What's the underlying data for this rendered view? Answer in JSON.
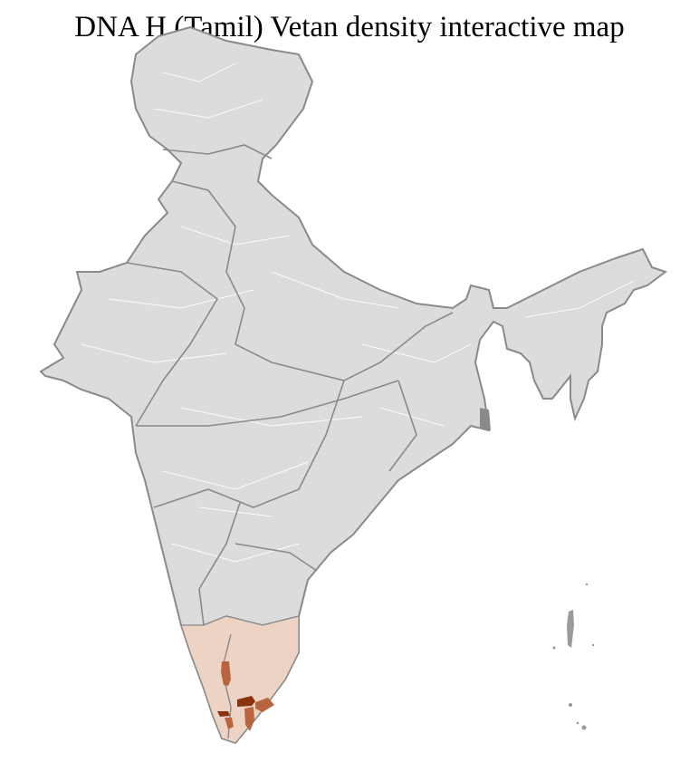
{
  "title": "DNA H (Tamil) Vetan density interactive map",
  "colors": {
    "land": "#dcdcdc",
    "state_border": "#8a8a8a",
    "district_border": "#ffffff",
    "density_low": "#ecd3c4",
    "density_mid": "#b8653f",
    "density_high": "#8a3210"
  }
}
